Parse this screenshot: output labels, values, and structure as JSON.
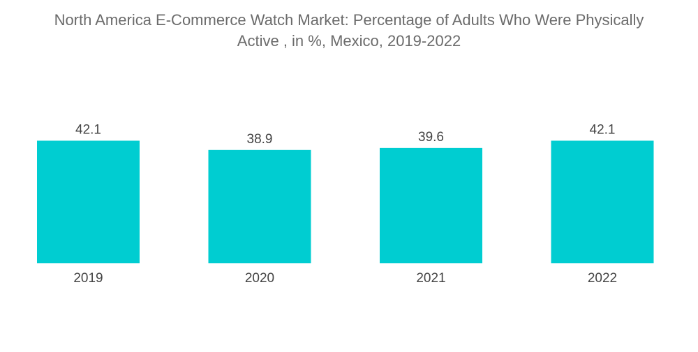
{
  "chart_data": {
    "type": "bar",
    "title_line1": "North America E-Commerce Watch Market: Percentage of Adults Who Were Physically",
    "title_line2": "Active , in %, Mexico, 2019-2022",
    "categories": [
      "2019",
      "2020",
      "2021",
      "2022"
    ],
    "values": [
      42.1,
      38.9,
      39.6,
      42.1
    ],
    "value_labels": [
      "42.1",
      "38.9",
      "39.6",
      "42.1"
    ],
    "xlabel": "",
    "ylabel": "",
    "bar_color": "#00cdd1",
    "grid": false,
    "legend": "none"
  }
}
